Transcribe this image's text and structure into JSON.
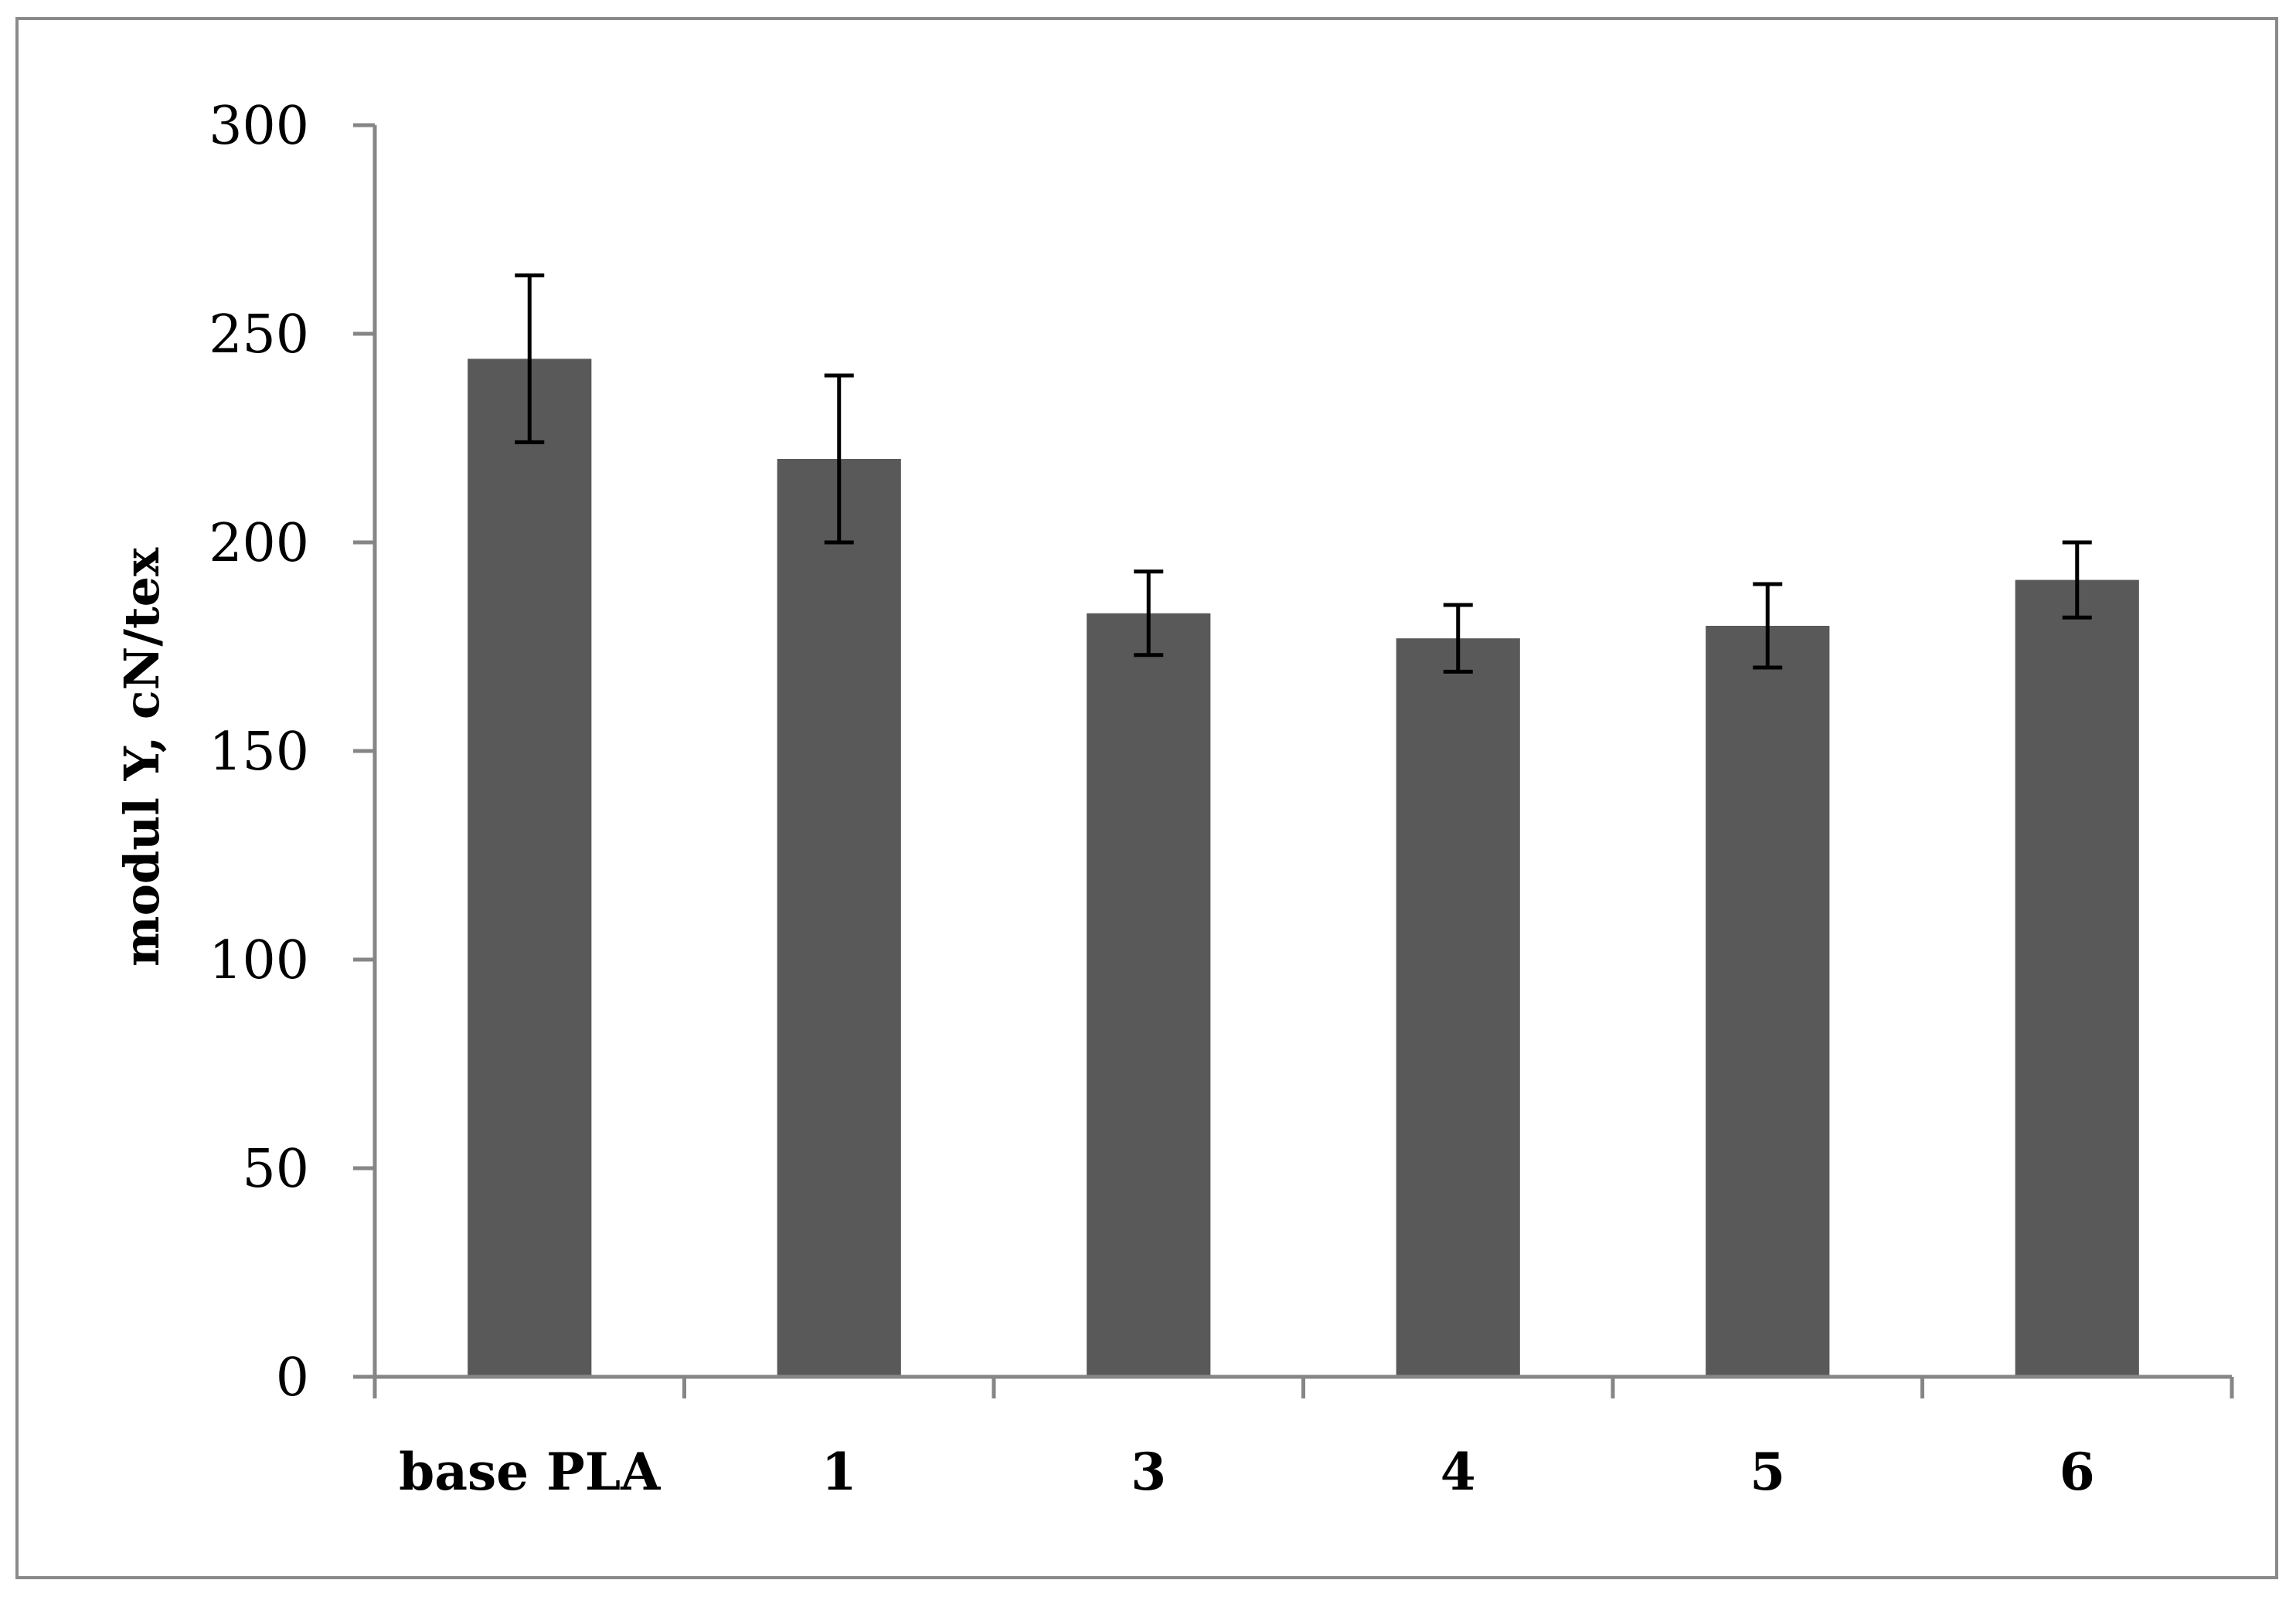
{
  "chart_data": {
    "type": "bar",
    "title": "",
    "xlabel": "",
    "ylabel": "modul Y, cN/tex",
    "ylim": [
      0,
      300
    ],
    "yticks": [
      0,
      50,
      100,
      150,
      200,
      250,
      300
    ],
    "categories": [
      "base PLA",
      "1",
      "3",
      "4",
      "5",
      "6"
    ],
    "values": [
      244,
      220,
      183,
      177,
      180,
      191
    ],
    "error_low": [
      224,
      200,
      173,
      169,
      170,
      182
    ],
    "error_high": [
      264,
      240,
      193,
      185,
      190,
      200
    ],
    "grid": false,
    "legend": "none",
    "colors": {
      "bar": "#595959",
      "axis": "#868686",
      "error_bar": "#000000",
      "frame": "#8a8a8a"
    }
  }
}
